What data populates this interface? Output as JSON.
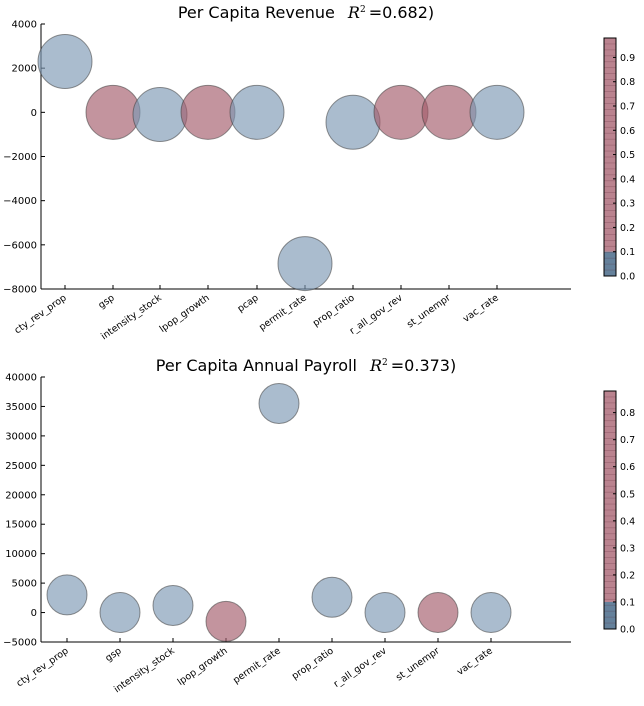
{
  "colors": {
    "blue": "#7d98b3",
    "red": "#a35a6a",
    "blue_dark": "#4a6b8a",
    "red_dark": "#7c3045"
  },
  "chart_data": [
    {
      "type": "scatter",
      "title": "Per Capita Revenue",
      "r2_label": "=0.682",
      "categories": [
        "cty_rev_prop",
        "gsp",
        "intensity_stock",
        "lpop_growth",
        "pcap",
        "permit_rate",
        "prop_ratio",
        "r_all_gov_rev",
        "st_unempr",
        "vac_rate"
      ],
      "values": [
        2300,
        0,
        -100,
        0,
        0,
        -6850,
        -450,
        0,
        0,
        0
      ],
      "color_values": [
        0.1,
        0.9,
        0.1,
        0.9,
        0.1,
        0.1,
        0.1,
        0.9,
        0.9,
        0.1
      ],
      "ylim": [
        -8000,
        4000
      ],
      "yticks": [
        4000,
        2000,
        0,
        -2000,
        -4000,
        -6000,
        -8000
      ],
      "ytick_labels": [
        "4000",
        "2000",
        "0",
        "−2000",
        "−4000",
        "−6000",
        "−8000"
      ],
      "colorbar": {
        "ticks": [
          "0.0",
          "0.1",
          "0.2",
          "0.3",
          "0.4",
          "0.5",
          "0.6",
          "0.7",
          "0.8",
          "0.9"
        ],
        "max": 0.98,
        "split": 0.1
      },
      "grid": false
    },
    {
      "type": "scatter",
      "title": "Per Capita Annual Payroll",
      "r2_label": "=0.373",
      "categories": [
        "cty_rev_prop",
        "gsp",
        "intensity_stock",
        "lpop_growth",
        "permit_rate",
        "prop_ratio",
        "r_all_gov_rev",
        "st_unempr",
        "vac_rate"
      ],
      "values": [
        3000,
        0,
        1200,
        -1500,
        35500,
        2600,
        0,
        0,
        0
      ],
      "color_values": [
        0.1,
        0.1,
        0.1,
        0.8,
        0.1,
        0.1,
        0.1,
        0.8,
        0.1
      ],
      "ylim": [
        -5000,
        40000
      ],
      "yticks": [
        40000,
        35000,
        30000,
        25000,
        20000,
        15000,
        10000,
        5000,
        0,
        -5000
      ],
      "ytick_labels": [
        "40000",
        "35000",
        "30000",
        "25000",
        "20000",
        "15000",
        "10000",
        "5000",
        "0",
        "−5000"
      ],
      "colorbar": {
        "ticks": [
          "0.0",
          "0.1",
          "0.2",
          "0.3",
          "0.4",
          "0.5",
          "0.6",
          "0.7",
          "0.8"
        ],
        "max": 0.88,
        "split": 0.1
      },
      "grid": false
    }
  ]
}
